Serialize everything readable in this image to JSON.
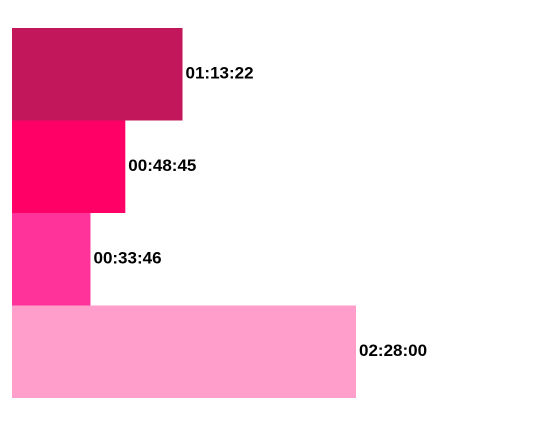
{
  "chart_data": {
    "type": "bar",
    "orientation": "horizontal",
    "categories": [
      "",
      "",
      "",
      ""
    ],
    "values_seconds": [
      4402,
      2925,
      2026,
      8880
    ],
    "value_labels": [
      "01:13:22",
      "00:48:45",
      "00:33:46",
      "02:28:00"
    ],
    "colors": [
      "#c2185b",
      "#ff0066",
      "#ff3399",
      "#ff9ecb"
    ],
    "xlim": [
      0,
      8880
    ],
    "grid": false,
    "legend": "none"
  }
}
